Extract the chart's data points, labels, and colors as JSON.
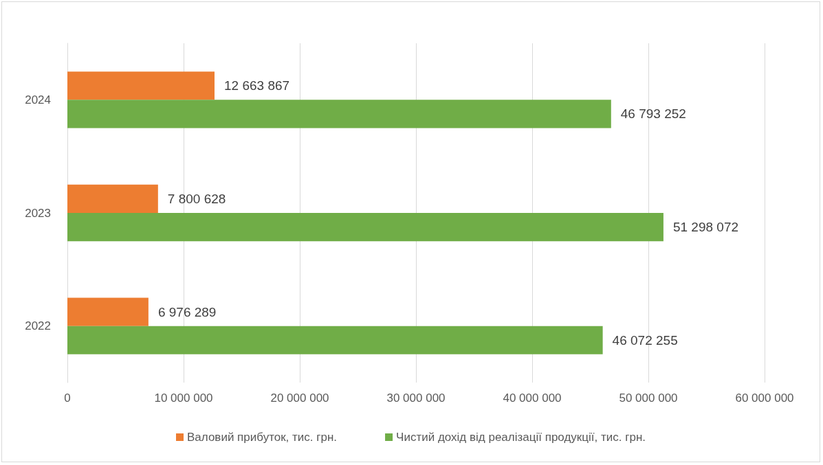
{
  "chart_data": {
    "type": "bar",
    "orientation": "horizontal",
    "categories": [
      "2024",
      "2023",
      "2022"
    ],
    "series": [
      {
        "name": "Валовий прибуток, тис. грн.",
        "color": "#ed7d31",
        "values": [
          12663867,
          7800628,
          6976289
        ],
        "value_labels": [
          "12 663 867",
          "7 800 628",
          "6 976 289"
        ]
      },
      {
        "name": "Чистий дохід від реалізації продукції, тис. грн.",
        "color": "#70ad47",
        "values": [
          46793252,
          51298072,
          46072255
        ],
        "value_labels": [
          "46 793 252",
          "51 298 072",
          "46 072 255"
        ]
      }
    ],
    "xlim": [
      0,
      60000000
    ],
    "xticks": [
      0,
      {
        "value": 10000000,
        "label": "10 000 000"
      },
      {
        "value": 20000000,
        "label": "20 000 000"
      },
      {
        "value": 30000000,
        "label": "30 000 000"
      },
      {
        "value": 40000000,
        "label": "40 000 000"
      },
      {
        "value": 50000000,
        "label": "50 000 000"
      },
      {
        "value": 60000000,
        "label": "60 000 000"
      }
    ],
    "grid": "x",
    "legend": "bottom"
  }
}
